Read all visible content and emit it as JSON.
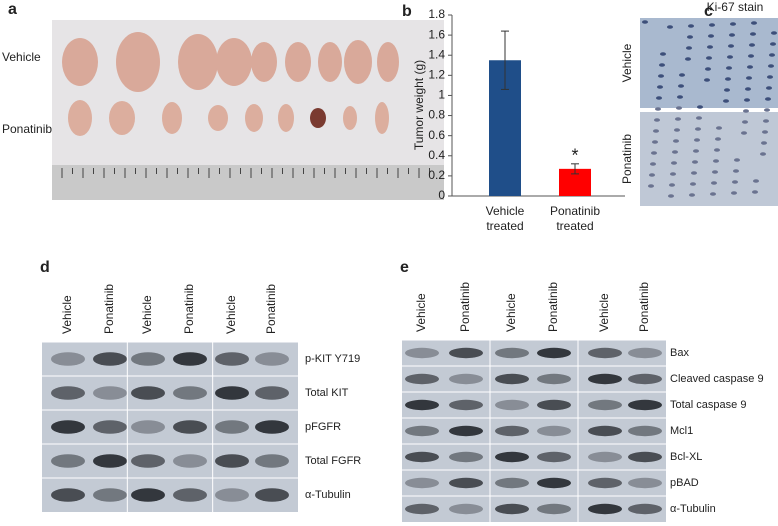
{
  "panels": {
    "a": {
      "label": "a",
      "rows": [
        "Vehicle",
        "Ponatinib"
      ]
    },
    "c": {
      "label": "c",
      "title": "Ki-67 stain",
      "rows": [
        "Vehicle",
        "Ponatinib"
      ]
    },
    "d": {
      "label": "d",
      "columns": [
        "Vehicle",
        "Ponatinib",
        "Vehicle",
        "Ponatinib",
        "Vehicle",
        "Ponatinib"
      ],
      "rows": [
        "p-KIT Y719",
        "Total KIT",
        "pFGFR",
        "Total FGFR",
        "α-Tubulin"
      ]
    },
    "e": {
      "label": "e",
      "columns": [
        "Vehicle",
        "Ponatinib",
        "Vehicle",
        "Ponatinib",
        "Vehicle",
        "Ponatinib"
      ],
      "rows": [
        "Bax",
        "Cleaved caspase 9",
        "Total caspase 9",
        "Mcl1",
        "Bcl-XL",
        "pBAD",
        "α-Tubulin"
      ]
    }
  },
  "chart_data": {
    "type": "bar",
    "panel_label": "b",
    "y_label": "Tumor weight (g)",
    "categories": [
      "Vehicle treated",
      "Ponatinib treated"
    ],
    "values": [
      1.35,
      0.27
    ],
    "errors": [
      0.29,
      0.05
    ],
    "colors": [
      "#1f4e89",
      "#ff0000"
    ],
    "annotations": [
      {
        "text": "*",
        "category": 1
      }
    ],
    "ylim": [
      0,
      1.8
    ],
    "yticks": [
      0,
      0.2,
      0.4,
      0.6,
      0.8,
      1,
      1.2,
      1.4,
      1.6,
      1.8
    ]
  }
}
